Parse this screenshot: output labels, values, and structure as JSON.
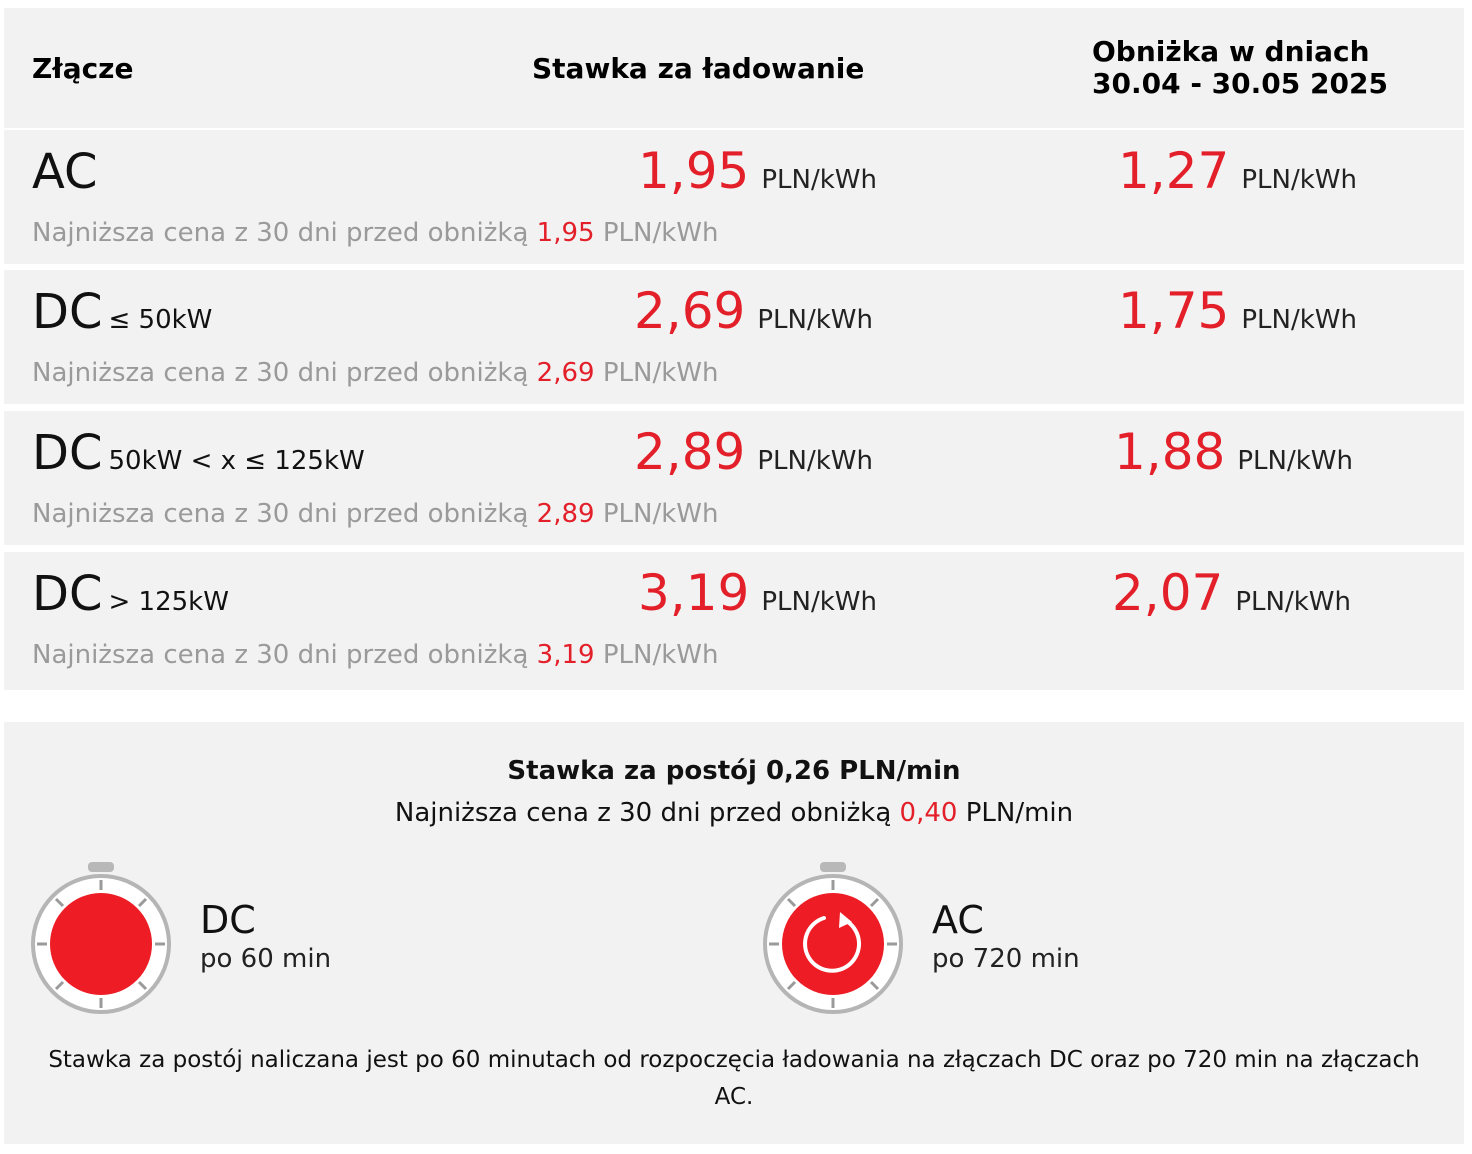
{
  "header": {
    "col1": "Złącze",
    "col2": "Stawka za ładowanie",
    "col3_line1": "Obniżka w dniach",
    "col3_line2": "30.04 - 30.05 2025"
  },
  "rows": [
    {
      "connector": "AC",
      "sub": "",
      "rate": "1,95",
      "rate_unit": "PLN/kWh",
      "promo": "1,27",
      "promo_unit": "PLN/kWh",
      "note_prefix": "Najniższa cena z 30 dni przed obniżką",
      "note_value": "1,95",
      "note_unit": "PLN/kWh"
    },
    {
      "connector": "DC",
      "sub": "≤ 50kW",
      "rate": "2,69",
      "rate_unit": "PLN/kWh",
      "promo": "1,75",
      "promo_unit": "PLN/kWh",
      "note_prefix": "Najniższa cena z 30 dni przed obniżką",
      "note_value": "2,69",
      "note_unit": "PLN/kWh"
    },
    {
      "connector": "DC",
      "sub": "50kW < x ≤ 125kW",
      "rate": "2,89",
      "rate_unit": "PLN/kWh",
      "promo": "1,88",
      "promo_unit": "PLN/kWh",
      "note_prefix": "Najniższa cena z 30 dni przed obniżką",
      "note_value": "2,89",
      "note_unit": "PLN/kWh"
    },
    {
      "connector": "DC",
      "sub": "> 125kW",
      "rate": "3,19",
      "rate_unit": "PLN/kWh",
      "promo": "2,07",
      "promo_unit": "PLN/kWh",
      "note_prefix": "Najniższa cena z 30 dni przed obniżką",
      "note_value": "3,19",
      "note_unit": "PLN/kWh"
    }
  ],
  "parking": {
    "title": "Stawka za postój 0,26 PLN/min",
    "note_prefix": "Najniższa cena z 30 dni przed obniżką",
    "note_value": "0,40",
    "note_unit": "PLN/min",
    "dc_label": "DC",
    "dc_sub": "po 60 min",
    "ac_label": "AC",
    "ac_sub": "po 720 min",
    "footer": "Stawka za postój naliczana jest po 60 minutach od rozpoczęcia ładowania na złączach DC oraz po 720 min na złączach AC."
  },
  "colors": {
    "accent": "#e3202a",
    "panel": "#f2f2f2",
    "muted": "#9a9a9a"
  }
}
